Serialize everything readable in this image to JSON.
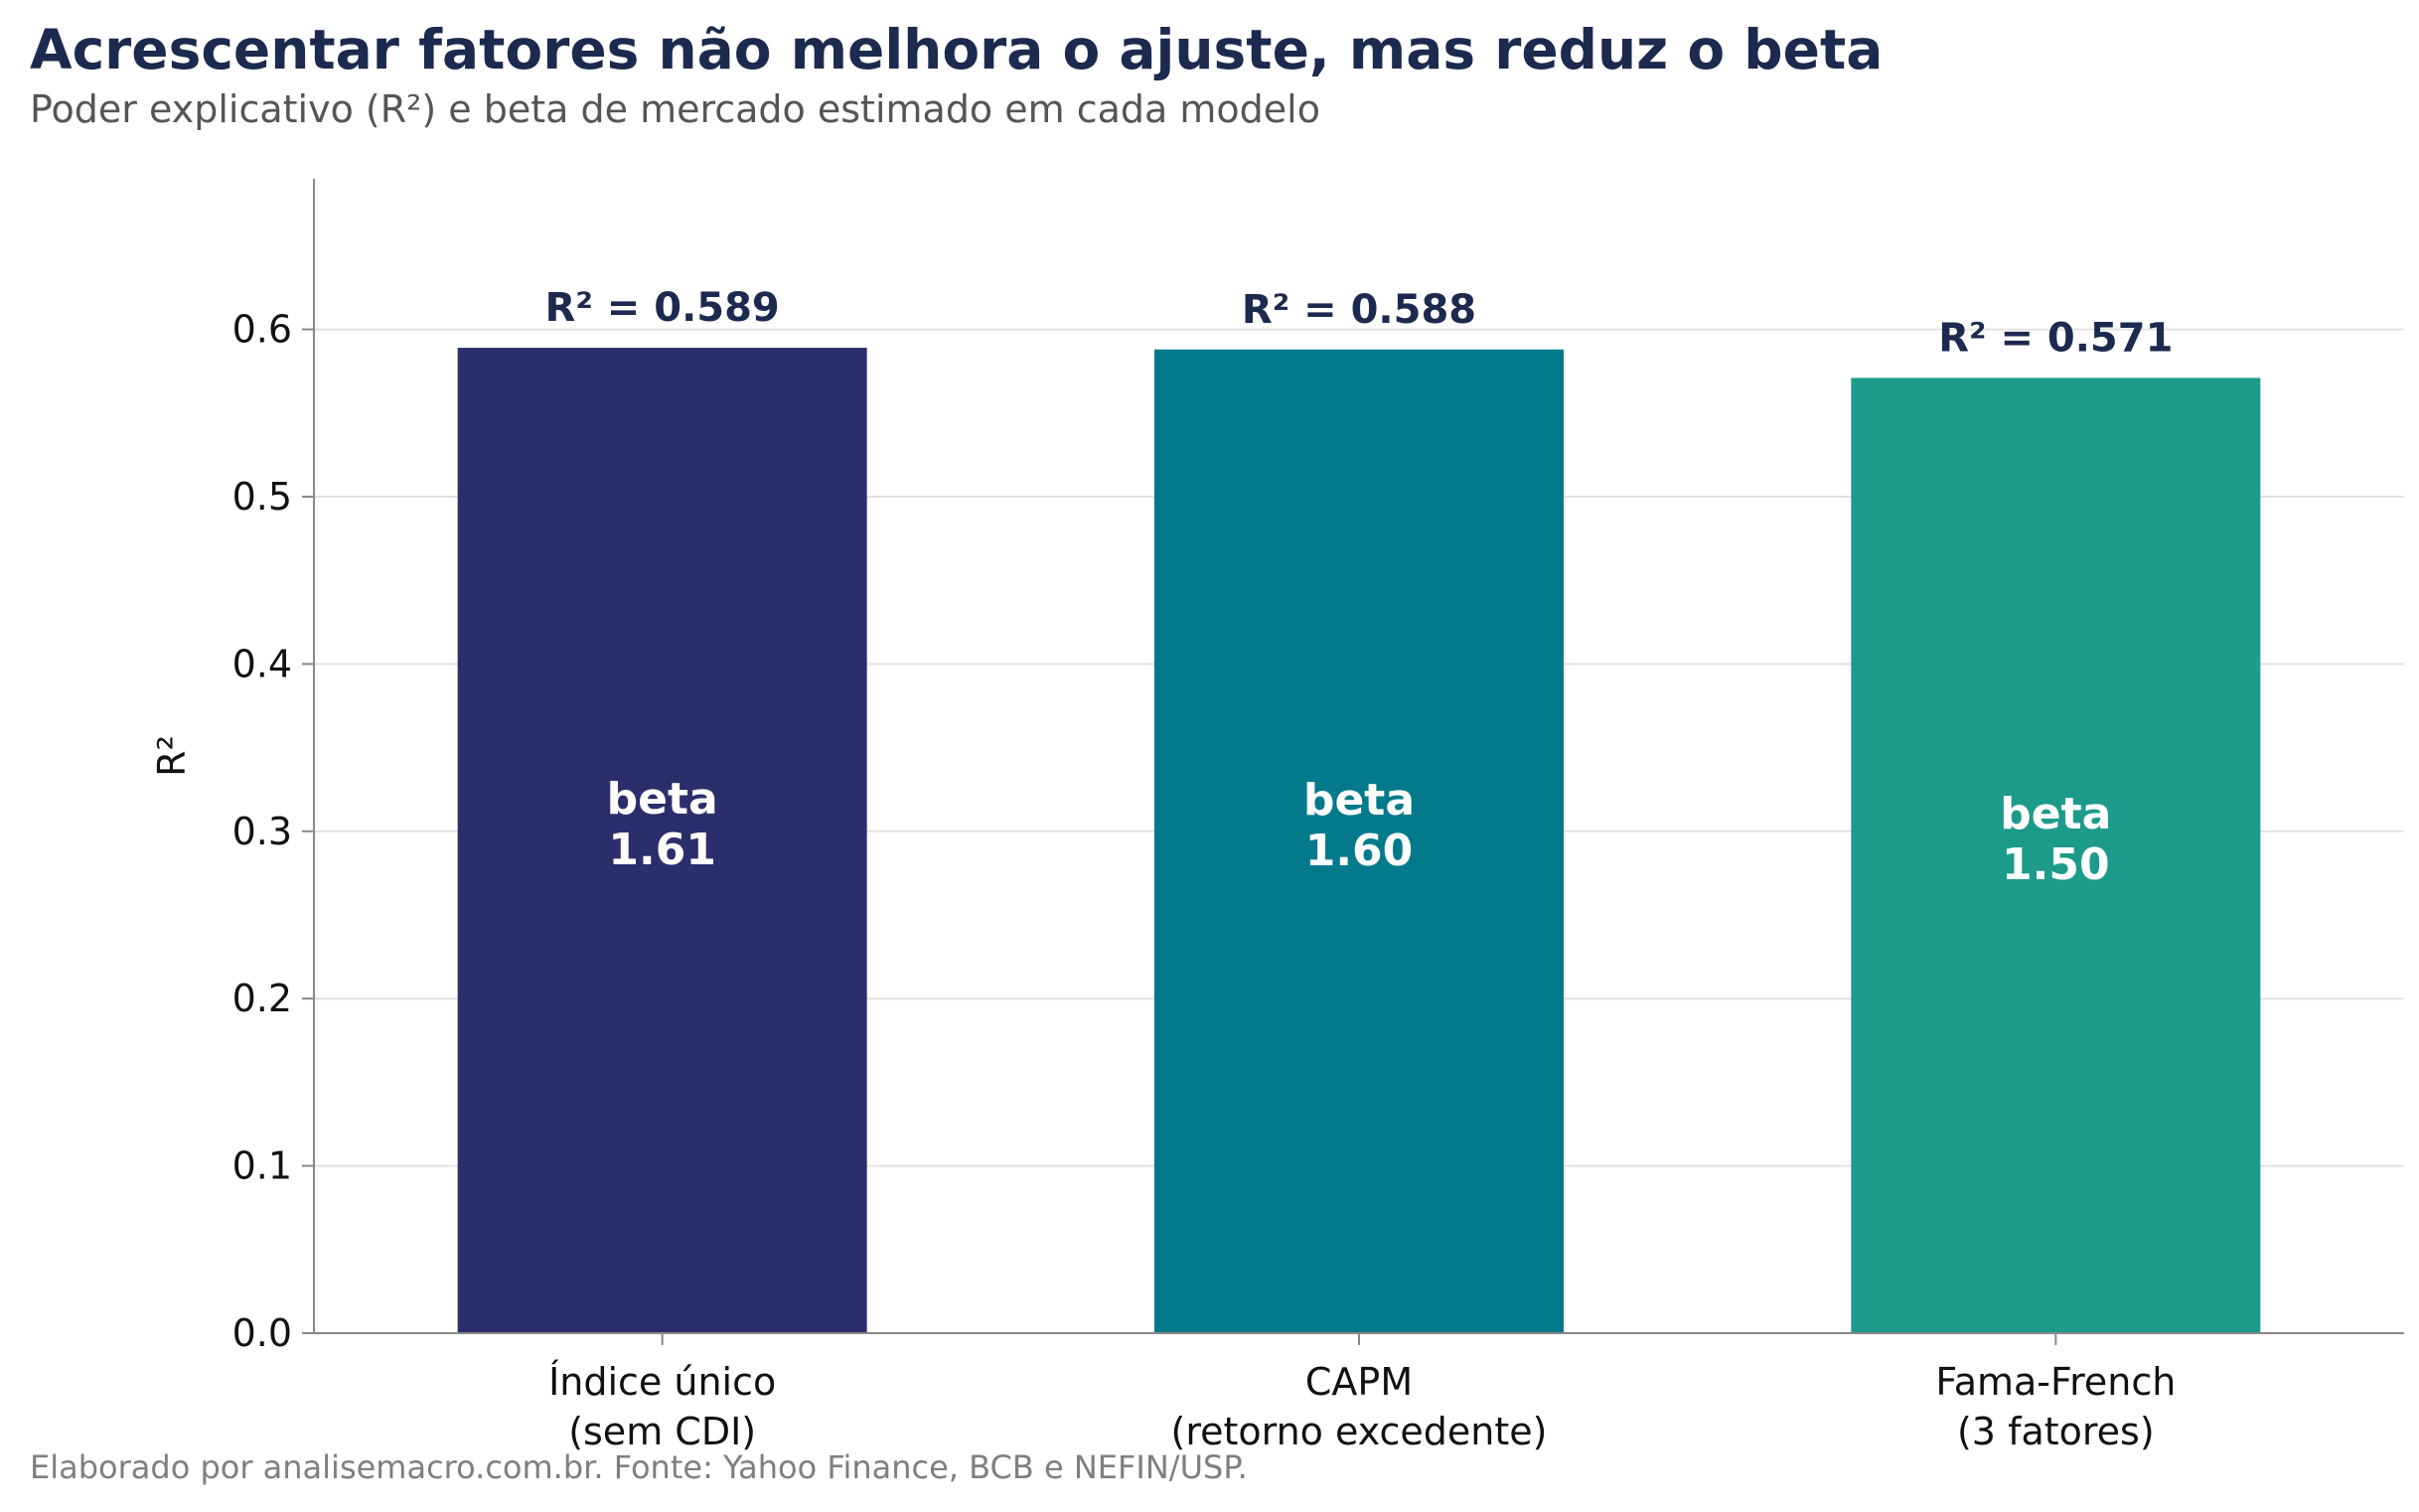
{
  "header": {
    "title": "Acrescentar fatores não melhora o ajuste, mas reduz o beta",
    "subtitle": "Poder explicativo (R²) e beta de mercado estimado em cada modelo"
  },
  "footer": {
    "source": "Elaborado por analisemacro.com.br. Fonte: Yahoo Finance, BCB e NEFIN/USP."
  },
  "chart_data": {
    "type": "bar",
    "title": "Acrescentar fatores não melhora o ajuste, mas reduz o beta",
    "subtitle": "Poder explicativo (R²) e beta de mercado estimado em cada modelo",
    "xlabel": "",
    "ylabel": "R²",
    "ylim": [
      0,
      0.69
    ],
    "yticks": [
      "0.0",
      "0.1",
      "0.2",
      "0.3",
      "0.4",
      "0.5",
      "0.6"
    ],
    "grid": "horizontal",
    "categories": [
      [
        "Índice único",
        "(sem CDI)"
      ],
      [
        "CAPM",
        "(retorno excedente)"
      ],
      [
        "Fama-French",
        "(3 fatores)"
      ]
    ],
    "values": [
      0.589,
      0.588,
      0.571
    ],
    "value_labels": [
      "R² = 0.589",
      "R² = 0.588",
      "R² = 0.571"
    ],
    "beta_label": "beta",
    "betas": [
      "1.61",
      "1.60",
      "1.50"
    ],
    "colors": [
      "#2a2e6a",
      "#027a8b",
      "#1c9b8a"
    ]
  }
}
